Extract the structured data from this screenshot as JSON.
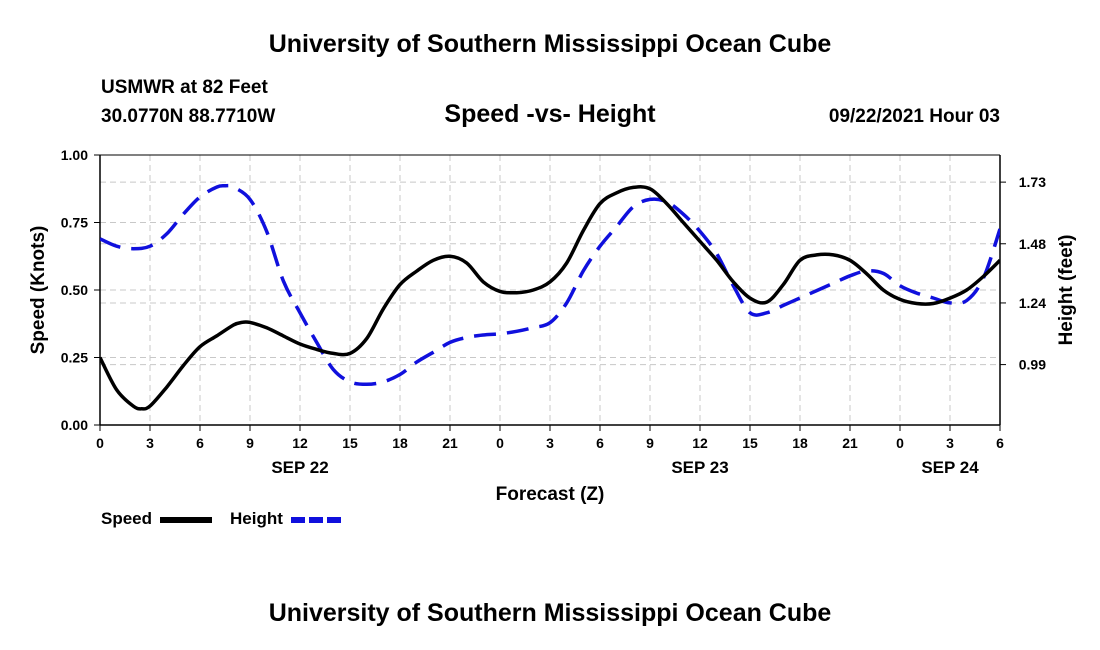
{
  "header": {
    "title": "University of Southern Mississippi Ocean Cube",
    "station": "USMWR at 82 Feet",
    "coords": "30.0770N  88.7710W",
    "subtitle": "Speed -vs- Height",
    "datetime": "09/22/2021 Hour 03"
  },
  "footer": {
    "title": "University of Southern Mississippi Ocean Cube"
  },
  "colors": {
    "speed": "#000000",
    "height": "#1010dd",
    "grid": "#c8c8c8"
  },
  "chart_data": {
    "type": "line",
    "title": "Speed -vs- Height",
    "xlabel": "Forecast (Z)",
    "ylabel": "Speed (Knots)",
    "y2label": "Height (feet)",
    "x_range": [
      0,
      54
    ],
    "ylim": [
      0,
      1
    ],
    "y2lim": [
      0.745,
      1.84
    ],
    "grid": true,
    "x_ticks": [
      0,
      3,
      6,
      9,
      12,
      15,
      18,
      21,
      24,
      27,
      30,
      33,
      36,
      39,
      42,
      45,
      48,
      51,
      54
    ],
    "x_tick_labels": [
      "0",
      "3",
      "6",
      "9",
      "12",
      "15",
      "18",
      "21",
      "0",
      "3",
      "6",
      "9",
      "12",
      "15",
      "18",
      "21",
      "0",
      "3",
      "6"
    ],
    "date_labels": [
      {
        "x": 12,
        "label": "SEP 22"
      },
      {
        "x": 36,
        "label": "SEP 23"
      },
      {
        "x": 51,
        "label": "SEP 24"
      }
    ],
    "y_ticks": [
      0,
      0.25,
      0.5,
      0.75,
      1.0
    ],
    "y_tick_labels": [
      "0.00",
      "0.25",
      "0.50",
      "0.75",
      "1.00"
    ],
    "y2_ticks": [
      0.99,
      1.24,
      1.48,
      1.73
    ],
    "y2_tick_labels": [
      "0.99",
      "1.24",
      "1.48",
      "1.73"
    ],
    "series": [
      {
        "name": "Speed",
        "axis": "left",
        "x": [
          0,
          1,
          2,
          2.5,
          3,
          4,
          5,
          6,
          7,
          8,
          8.5,
          9,
          10,
          11,
          12,
          13,
          14,
          15,
          16,
          17,
          18,
          19,
          20,
          21,
          22,
          23,
          24,
          25,
          26,
          27,
          28,
          29,
          30,
          31,
          32,
          33,
          34,
          35,
          36,
          37,
          38,
          39,
          40,
          41,
          42,
          43,
          44,
          45,
          46,
          47,
          48,
          49,
          50,
          51,
          52,
          53,
          54
        ],
        "values": [
          0.25,
          0.13,
          0.07,
          0.06,
          0.07,
          0.14,
          0.22,
          0.29,
          0.33,
          0.37,
          0.38,
          0.38,
          0.36,
          0.33,
          0.3,
          0.28,
          0.265,
          0.265,
          0.32,
          0.43,
          0.52,
          0.57,
          0.61,
          0.625,
          0.6,
          0.53,
          0.495,
          0.49,
          0.5,
          0.53,
          0.6,
          0.72,
          0.82,
          0.86,
          0.88,
          0.875,
          0.82,
          0.75,
          0.68,
          0.61,
          0.53,
          0.47,
          0.455,
          0.52,
          0.61,
          0.63,
          0.63,
          0.61,
          0.56,
          0.5,
          0.465,
          0.45,
          0.45,
          0.47,
          0.5,
          0.55,
          0.61
        ]
      },
      {
        "name": "Height",
        "axis": "right",
        "x": [
          0,
          1,
          2,
          3,
          4,
          5,
          6,
          7,
          7.5,
          8,
          9,
          10,
          11,
          12,
          13,
          14,
          15,
          16,
          17,
          18,
          19,
          20,
          21,
          22,
          23,
          24,
          25,
          26,
          27,
          28,
          29,
          30,
          31,
          32,
          33,
          34,
          35,
          36,
          37,
          38,
          39,
          40,
          41,
          42,
          43,
          44,
          45,
          46,
          47,
          48,
          49,
          50,
          51,
          52,
          53,
          54
        ],
        "values": [
          1.5,
          1.47,
          1.46,
          1.47,
          1.52,
          1.6,
          1.67,
          1.71,
          1.715,
          1.71,
          1.66,
          1.53,
          1.33,
          1.2,
          1.08,
          0.97,
          0.92,
          0.91,
          0.92,
          0.95,
          1.0,
          1.04,
          1.08,
          1.1,
          1.11,
          1.115,
          1.125,
          1.14,
          1.16,
          1.24,
          1.37,
          1.47,
          1.55,
          1.63,
          1.66,
          1.65,
          1.6,
          1.53,
          1.44,
          1.31,
          1.2,
          1.2,
          1.23,
          1.26,
          1.29,
          1.32,
          1.35,
          1.37,
          1.36,
          1.31,
          1.28,
          1.26,
          1.24,
          1.25,
          1.34,
          1.54
        ]
      }
    ]
  }
}
